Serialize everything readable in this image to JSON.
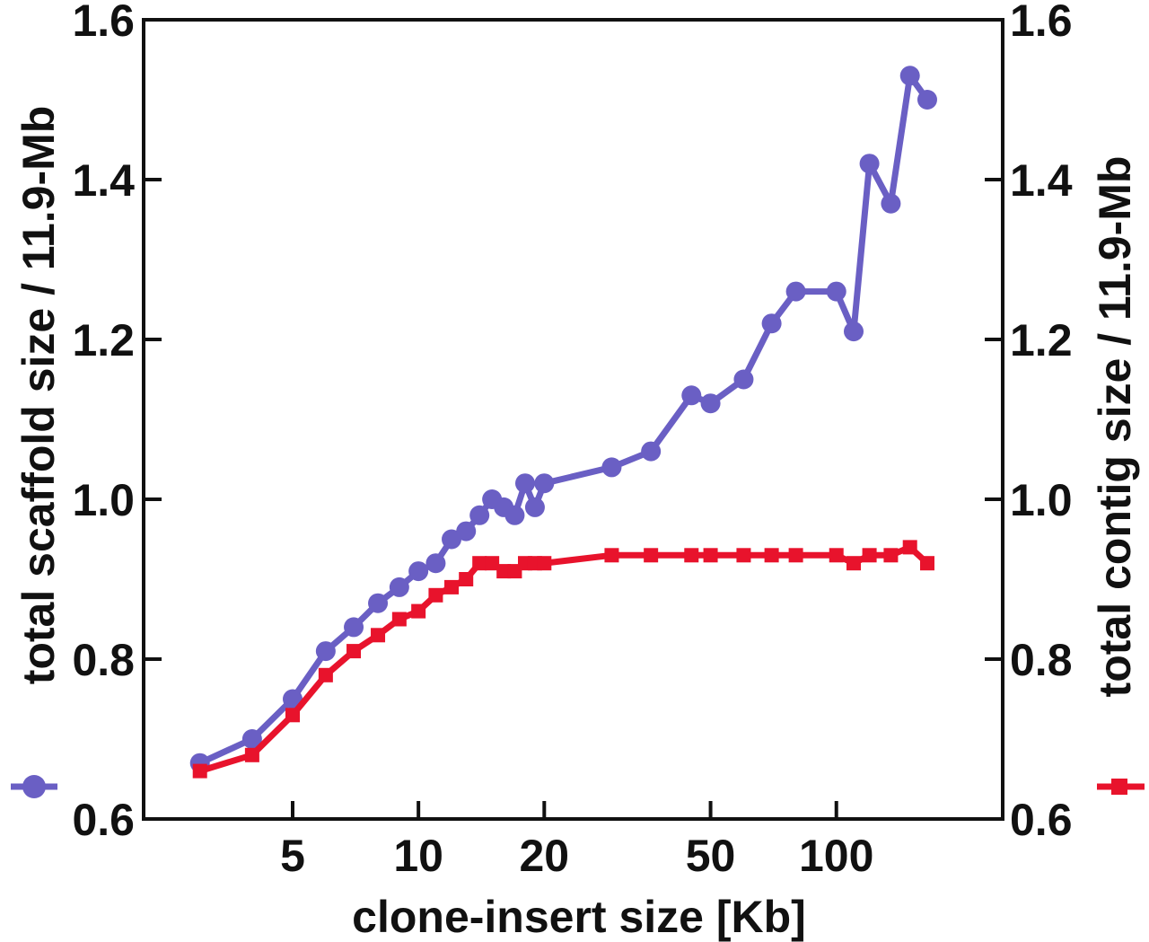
{
  "chart_data": {
    "type": "line",
    "xlabel": "clone-insert size [Kb]",
    "ylabel_left": "total scaffold size / 11.9-Mb",
    "ylabel_right": "total contig size / 11.9-Mb",
    "x_scale": "log",
    "xlim": [
      2.2,
      250
    ],
    "ylim": [
      0.6,
      1.6
    ],
    "x_ticks": [
      {
        "value": 5,
        "label": "5"
      },
      {
        "value": 10,
        "label": "10"
      },
      {
        "value": 20,
        "label": "20"
      },
      {
        "value": 50,
        "label": "50"
      },
      {
        "value": 100,
        "label": "100"
      }
    ],
    "y_ticks_left": [
      {
        "value": 0.6,
        "label": "0.6"
      },
      {
        "value": 0.8,
        "label": "0.8"
      },
      {
        "value": 1.0,
        "label": "1.0"
      },
      {
        "value": 1.2,
        "label": "1.2"
      },
      {
        "value": 1.4,
        "label": "1.4"
      },
      {
        "value": 1.6,
        "label": "1.6"
      }
    ],
    "y_ticks_right": [
      {
        "value": 0.6,
        "label": "0.6"
      },
      {
        "value": 0.8,
        "label": "0.8"
      },
      {
        "value": 1.0,
        "label": "1.0"
      },
      {
        "value": 1.2,
        "label": "1.2"
      },
      {
        "value": 1.4,
        "label": "1.4"
      },
      {
        "value": 1.6,
        "label": "1.6"
      }
    ],
    "grid": false,
    "series": [
      {
        "axis": "left",
        "color": "#6a5fc4",
        "marker": "circle",
        "x": [
          3.0,
          4.0,
          5.0,
          6.0,
          7.0,
          8.0,
          9.0,
          10.0,
          11.0,
          12.0,
          13.0,
          14.0,
          15.0,
          16.0,
          17.0,
          18.0,
          19.0,
          20.0,
          29.0,
          36.0,
          45.0,
          50.0,
          60.0,
          70.0,
          80.0,
          100.0,
          110.0,
          120.0,
          135.0,
          150.0,
          165.0
        ],
        "y": [
          0.67,
          0.7,
          0.75,
          0.81,
          0.84,
          0.87,
          0.89,
          0.91,
          0.92,
          0.95,
          0.96,
          0.98,
          1.0,
          0.99,
          0.98,
          1.02,
          0.99,
          1.02,
          1.04,
          1.06,
          1.13,
          1.12,
          1.15,
          1.22,
          1.26,
          1.26,
          1.21,
          1.42,
          1.37,
          1.53,
          1.5
        ]
      },
      {
        "axis": "right",
        "color": "#e8132c",
        "marker": "square",
        "x": [
          3.0,
          4.0,
          5.0,
          6.0,
          7.0,
          8.0,
          9.0,
          10.0,
          11.0,
          12.0,
          13.0,
          14.0,
          15.0,
          16.0,
          17.0,
          18.0,
          19.0,
          20.0,
          29.0,
          36.0,
          45.0,
          50.0,
          60.0,
          70.0,
          80.0,
          100.0,
          110.0,
          120.0,
          135.0,
          150.0,
          165.0
        ],
        "y": [
          0.66,
          0.68,
          0.73,
          0.78,
          0.81,
          0.83,
          0.85,
          0.86,
          0.88,
          0.89,
          0.9,
          0.92,
          0.92,
          0.91,
          0.91,
          0.92,
          0.92,
          0.92,
          0.93,
          0.93,
          0.93,
          0.93,
          0.93,
          0.93,
          0.93,
          0.93,
          0.92,
          0.93,
          0.93,
          0.94,
          0.92
        ]
      }
    ]
  }
}
